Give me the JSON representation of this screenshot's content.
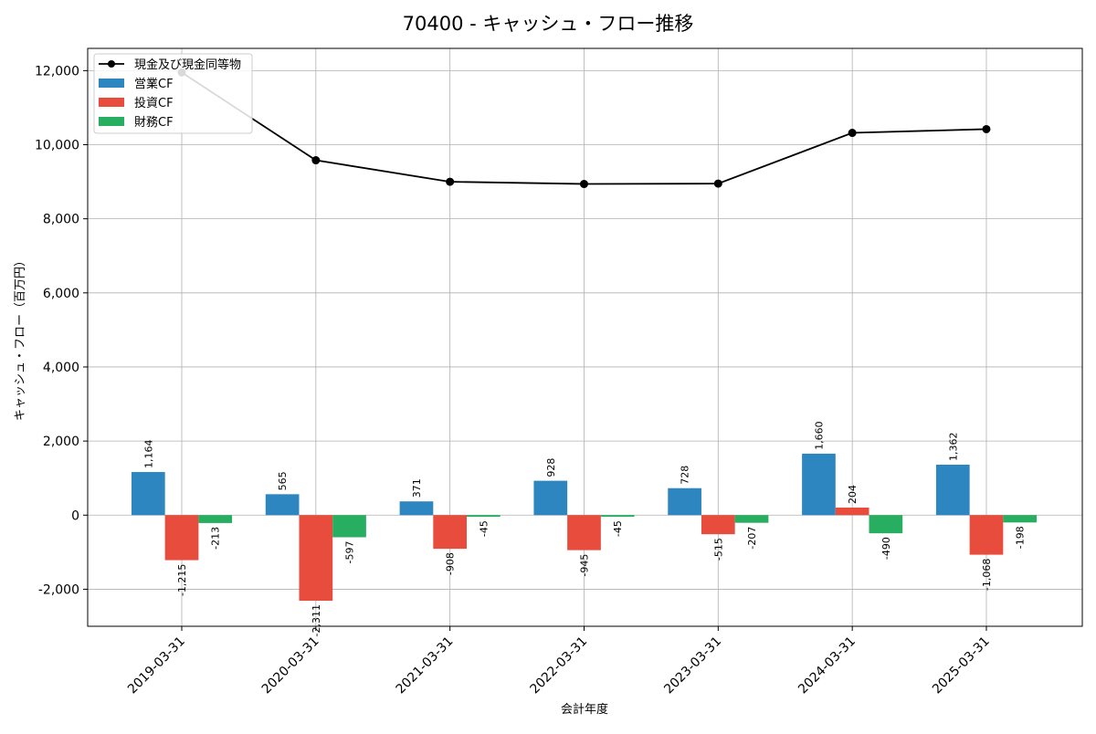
{
  "title": "70400 - キャッシュ・フロー推移",
  "chart_data": {
    "type": "bar",
    "title": "70400 - キャッシュ・フロー推移",
    "xlabel": "会計年度",
    "ylabel": "キャッシュ・フロー（百万円）",
    "ylim": [
      -3000,
      12600
    ],
    "yticks": [
      -2000,
      0,
      2000,
      4000,
      6000,
      8000,
      10000,
      12000
    ],
    "ytick_labels": [
      "-2,000",
      "0",
      "2,000",
      "4,000",
      "6,000",
      "8,000",
      "10,000",
      "12,000"
    ],
    "grid": true,
    "legend_position": "top-left",
    "categories": [
      "2019-03-31",
      "2020-03-31",
      "2021-03-31",
      "2022-03-31",
      "2023-03-31",
      "2024-03-31",
      "2025-03-31"
    ],
    "series": [
      {
        "name": "営業CF",
        "type": "bar",
        "color": "#2e86c1",
        "values": [
          1164,
          565,
          371,
          928,
          728,
          1660,
          1362
        ],
        "labels": [
          "1,164",
          "565",
          "371",
          "928",
          "728",
          "1,660",
          "1,362"
        ]
      },
      {
        "name": "投資CF",
        "type": "bar",
        "color": "#e74c3c",
        "values": [
          -1215,
          -2311,
          -908,
          -945,
          -515,
          204,
          -1068
        ],
        "labels": [
          "-1,215",
          "-2,311",
          "-908",
          "-945",
          "-515",
          "204",
          "-1,068"
        ]
      },
      {
        "name": "財務CF",
        "type": "bar",
        "color": "#27ae60",
        "values": [
          -213,
          -597,
          -45,
          -45,
          -207,
          -490,
          -198
        ],
        "labels": [
          "-213",
          "-597",
          "-45",
          "-45",
          "-207",
          "-490",
          "-198"
        ]
      },
      {
        "name": "現金及び現金同等物",
        "type": "line",
        "color": "#000000",
        "values": [
          11950,
          9580,
          9000,
          8940,
          8950,
          10320,
          10420
        ]
      }
    ]
  }
}
